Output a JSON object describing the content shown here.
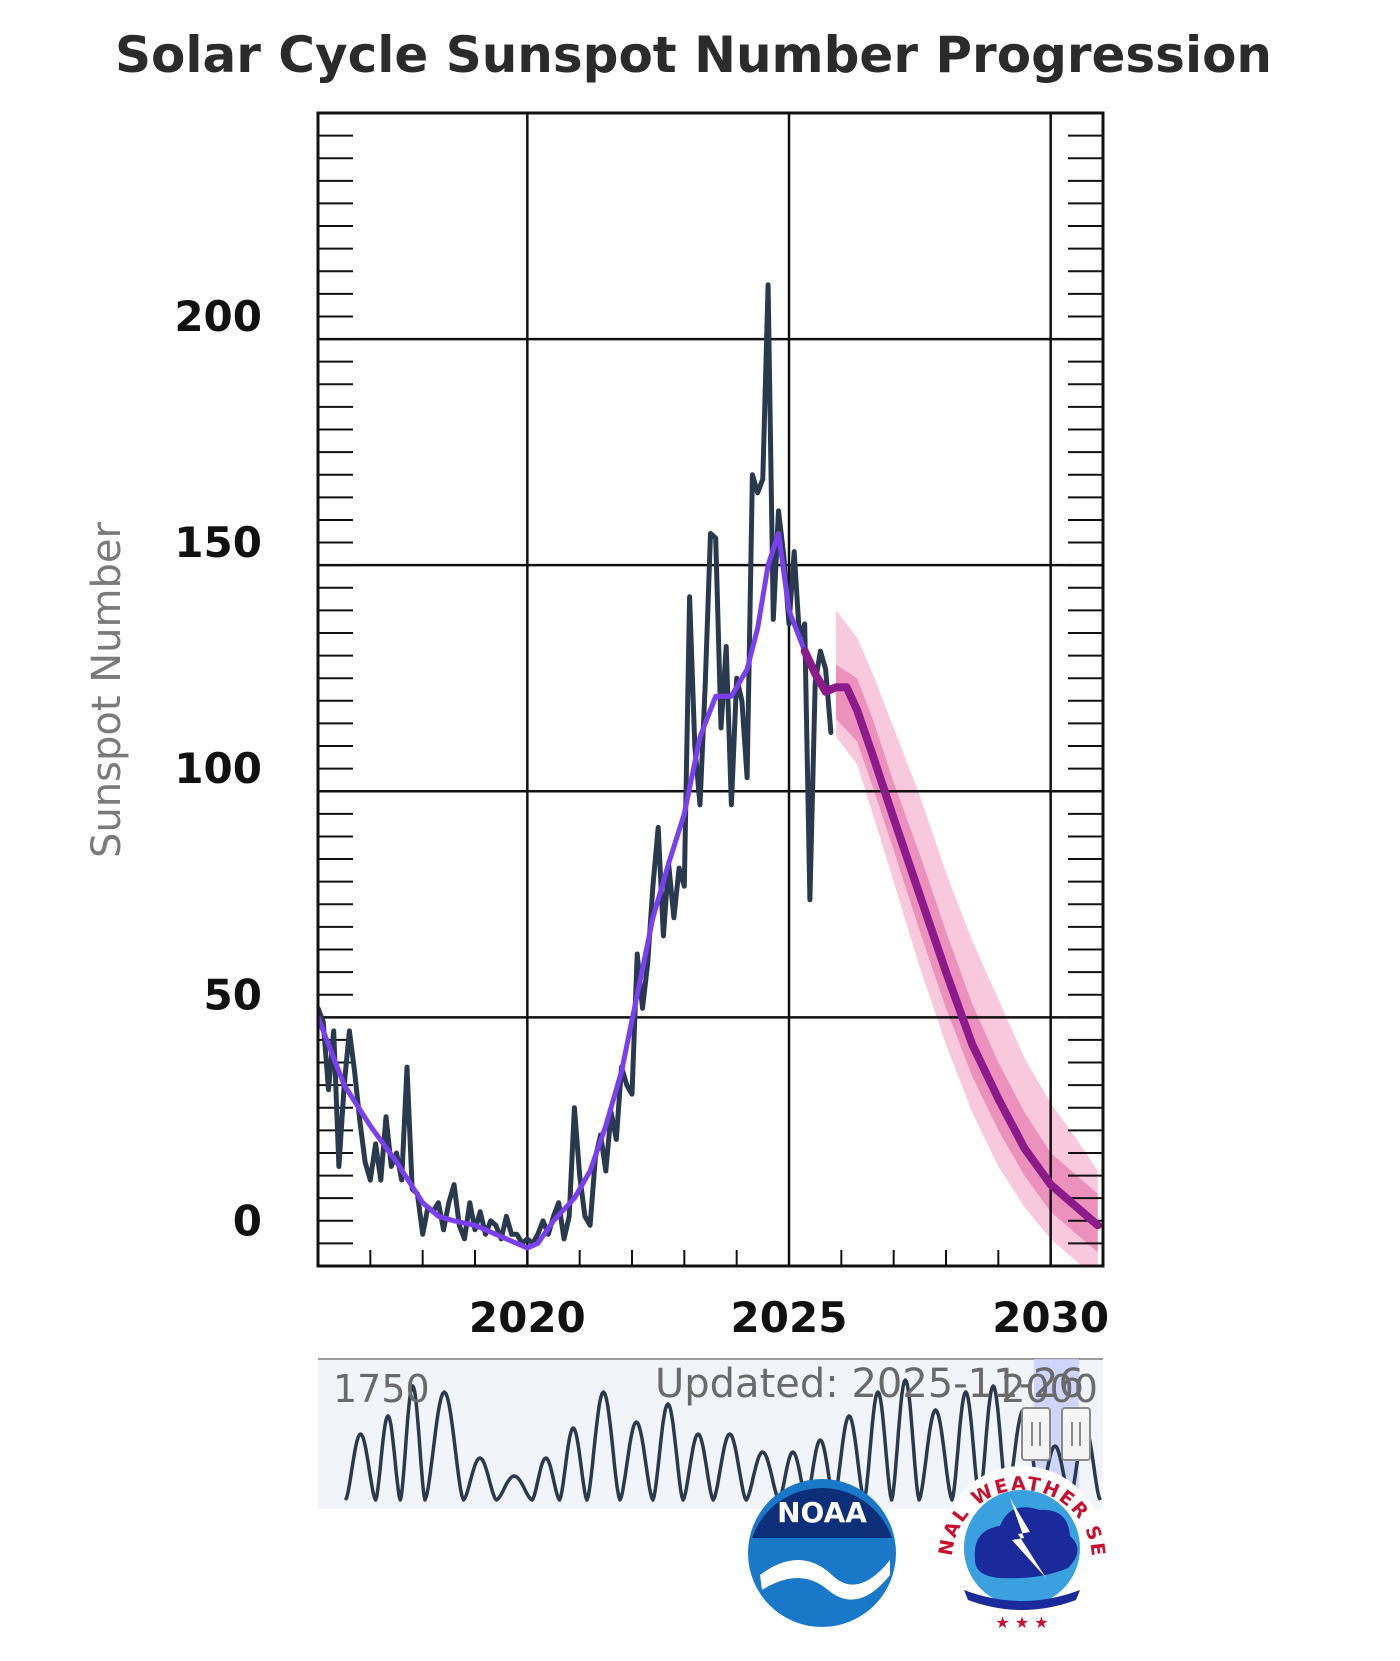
{
  "chart_data": {
    "type": "line",
    "title": "Solar Cycle Sunspot Number Progression",
    "ylabel": "Sunspot Number",
    "xlabel": "",
    "xlim": [
      2016.0,
      2031.0
    ],
    "ylim": [
      -5,
      250
    ],
    "y_ticks": [
      0,
      50,
      100,
      150,
      200
    ],
    "x_ticks": [
      2020,
      2025,
      2030
    ],
    "grid": true,
    "series": [
      {
        "kind": "observed_monthly",
        "color": "#2a3a4e",
        "points": [
          [
            2016.0,
            52
          ],
          [
            2016.1,
            49
          ],
          [
            2016.2,
            34
          ],
          [
            2016.3,
            47
          ],
          [
            2016.4,
            17
          ],
          [
            2016.5,
            35
          ],
          [
            2016.6,
            47
          ],
          [
            2016.7,
            38
          ],
          [
            2016.8,
            27
          ],
          [
            2016.9,
            18
          ],
          [
            2017.0,
            14
          ],
          [
            2017.1,
            22
          ],
          [
            2017.2,
            14
          ],
          [
            2017.3,
            28
          ],
          [
            2017.4,
            17
          ],
          [
            2017.5,
            20
          ],
          [
            2017.6,
            14
          ],
          [
            2017.7,
            39
          ],
          [
            2017.8,
            12
          ],
          [
            2017.9,
            11
          ],
          [
            2018.0,
            2
          ],
          [
            2018.1,
            8
          ],
          [
            2018.2,
            7
          ],
          [
            2018.3,
            9
          ],
          [
            2018.4,
            3
          ],
          [
            2018.5,
            9
          ],
          [
            2018.6,
            13
          ],
          [
            2018.7,
            4
          ],
          [
            2018.8,
            1
          ],
          [
            2018.9,
            9
          ],
          [
            2019.0,
            3
          ],
          [
            2019.1,
            7
          ],
          [
            2019.2,
            2
          ],
          [
            2019.3,
            5
          ],
          [
            2019.4,
            4
          ],
          [
            2019.5,
            1
          ],
          [
            2019.6,
            6
          ],
          [
            2019.7,
            2
          ],
          [
            2019.8,
            2
          ],
          [
            2019.9,
            0
          ],
          [
            2020.0,
            1
          ],
          [
            2020.1,
            0
          ],
          [
            2020.2,
            2
          ],
          [
            2020.3,
            5
          ],
          [
            2020.4,
            2
          ],
          [
            2020.5,
            6
          ],
          [
            2020.6,
            9
          ],
          [
            2020.7,
            1
          ],
          [
            2020.8,
            6
          ],
          [
            2020.9,
            30
          ],
          [
            2021.0,
            15
          ],
          [
            2021.1,
            6
          ],
          [
            2021.2,
            4
          ],
          [
            2021.3,
            19
          ],
          [
            2021.4,
            24
          ],
          [
            2021.5,
            16
          ],
          [
            2021.6,
            29
          ],
          [
            2021.7,
            23
          ],
          [
            2021.8,
            39
          ],
          [
            2021.9,
            35
          ],
          [
            2022.0,
            33
          ],
          [
            2022.1,
            64
          ],
          [
            2022.2,
            52
          ],
          [
            2022.3,
            62
          ],
          [
            2022.4,
            79
          ],
          [
            2022.5,
            92
          ],
          [
            2022.6,
            68
          ],
          [
            2022.7,
            84
          ],
          [
            2022.8,
            72
          ],
          [
            2022.9,
            83
          ],
          [
            2023.0,
            79
          ],
          [
            2023.1,
            143
          ],
          [
            2023.2,
            110
          ],
          [
            2023.3,
            97
          ],
          [
            2023.4,
            124
          ],
          [
            2023.5,
            157
          ],
          [
            2023.6,
            156
          ],
          [
            2023.7,
            114
          ],
          [
            2023.8,
            132
          ],
          [
            2023.9,
            97
          ],
          [
            2024.0,
            125
          ],
          [
            2024.1,
            120
          ],
          [
            2024.2,
            103
          ],
          [
            2024.3,
            170
          ],
          [
            2024.4,
            166
          ],
          [
            2024.5,
            169
          ],
          [
            2024.6,
            212
          ],
          [
            2024.7,
            138
          ],
          [
            2024.8,
            162
          ],
          [
            2024.9,
            152
          ],
          [
            2025.0,
            137
          ],
          [
            2025.1,
            153
          ],
          [
            2025.2,
            134
          ],
          [
            2025.3,
            137
          ],
          [
            2025.4,
            76
          ],
          [
            2025.5,
            124
          ],
          [
            2025.6,
            131
          ],
          [
            2025.7,
            127
          ],
          [
            2025.8,
            113
          ]
        ]
      },
      {
        "kind": "smoothed",
        "color": "#7b3ff2",
        "points": [
          [
            2016.0,
            50
          ],
          [
            2016.5,
            35
          ],
          [
            2017.0,
            26
          ],
          [
            2017.5,
            18
          ],
          [
            2018.0,
            9
          ],
          [
            2018.3,
            6
          ],
          [
            2018.6,
            5
          ],
          [
            2019.0,
            4
          ],
          [
            2019.4,
            2
          ],
          [
            2019.8,
            0
          ],
          [
            2020.0,
            -1
          ],
          [
            2020.2,
            0
          ],
          [
            2020.5,
            5
          ],
          [
            2020.9,
            10
          ],
          [
            2021.2,
            16
          ],
          [
            2021.5,
            26
          ],
          [
            2021.8,
            38
          ],
          [
            2022.1,
            55
          ],
          [
            2022.4,
            72
          ],
          [
            2022.7,
            84
          ],
          [
            2023.0,
            95
          ],
          [
            2023.3,
            112
          ],
          [
            2023.6,
            121
          ],
          [
            2023.9,
            121
          ],
          [
            2024.2,
            127
          ],
          [
            2024.4,
            136
          ],
          [
            2024.6,
            150
          ],
          [
            2024.8,
            157
          ],
          [
            2025.0,
            140
          ],
          [
            2025.3,
            131
          ]
        ]
      },
      {
        "kind": "predicted",
        "color": "#8b1a8b",
        "points": [
          [
            2025.3,
            131
          ],
          [
            2025.5,
            126
          ],
          [
            2025.7,
            122
          ],
          [
            2025.9,
            123
          ],
          [
            2026.1,
            123
          ],
          [
            2026.3,
            118
          ],
          [
            2026.6,
            108
          ],
          [
            2027.0,
            94
          ],
          [
            2027.5,
            77
          ],
          [
            2028.0,
            60
          ],
          [
            2028.5,
            44
          ],
          [
            2029.0,
            32
          ],
          [
            2029.5,
            21
          ],
          [
            2030.0,
            13
          ],
          [
            2030.5,
            8
          ],
          [
            2030.9,
            4
          ]
        ],
        "band_inner": [
          [
            2025.9,
            116,
            128
          ],
          [
            2026.3,
            111,
            125
          ],
          [
            2026.6,
            101,
            116
          ],
          [
            2027.0,
            87,
            102
          ],
          [
            2027.5,
            69,
            86
          ],
          [
            2028.0,
            52,
            69
          ],
          [
            2028.5,
            37,
            53
          ],
          [
            2029.0,
            25,
            40
          ],
          [
            2029.5,
            15,
            29
          ],
          [
            2030.0,
            7,
            20
          ],
          [
            2030.5,
            2,
            15
          ],
          [
            2030.9,
            -2,
            11
          ]
        ],
        "band_outer": [
          [
            2025.9,
            112,
            140
          ],
          [
            2026.3,
            106,
            134
          ],
          [
            2026.6,
            95,
            126
          ],
          [
            2027.0,
            80,
            114
          ],
          [
            2027.5,
            61,
            99
          ],
          [
            2028.0,
            44,
            82
          ],
          [
            2028.5,
            29,
            67
          ],
          [
            2029.0,
            17,
            54
          ],
          [
            2029.5,
            8,
            41
          ],
          [
            2030.0,
            1,
            31
          ],
          [
            2030.5,
            -4,
            23
          ],
          [
            2030.9,
            -8,
            16
          ]
        ]
      }
    ],
    "navigator": {
      "start_label": "1750",
      "end_label": "2000",
      "updated": "Updated: 2025-11-26",
      "cycles": [
        1755,
        1766,
        1775,
        1784,
        1798,
        1810,
        1823,
        1833,
        1843,
        1855,
        1867,
        1878,
        1889,
        1901,
        1913,
        1923,
        1933,
        1944,
        1954,
        1964,
        1976,
        1986,
        1996,
        2008,
        2019
      ],
      "peaks": [
        0.55,
        0.7,
        0.95,
        0.9,
        0.35,
        0.2,
        0.35,
        0.6,
        0.9,
        0.65,
        0.8,
        0.55,
        0.55,
        0.4,
        0.4,
        0.5,
        0.7,
        0.9,
        1.0,
        0.75,
        0.9,
        0.95,
        0.75,
        0.45,
        0.6
      ]
    },
    "logos": {
      "noaa": "NOAA",
      "nws": "NATIONAL WEATHER SERVICE"
    }
  }
}
